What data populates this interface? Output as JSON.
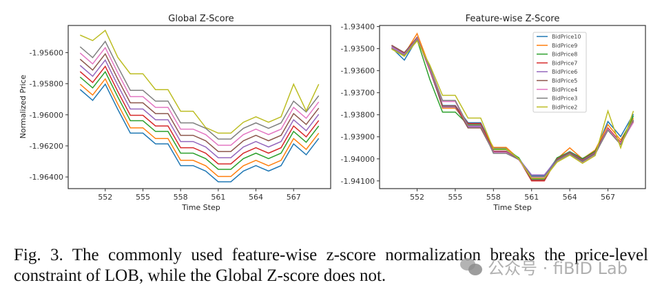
{
  "figure": {
    "caption": "Fig. 3.  The commonly used feature-wise z-score normalization breaks the price-level constraint of LOB, while the Global Z-score does not.",
    "watermark": "公众号 · fiBID Lab"
  },
  "colors": [
    "#1f77b4",
    "#ff7f0e",
    "#2ca02c",
    "#d62728",
    "#9467bd",
    "#8c564b",
    "#e377c2",
    "#7f7f7f",
    "#bcbd22"
  ],
  "chart_data": [
    {
      "type": "line",
      "title": "Global Z-Score",
      "xlabel": "Time Step",
      "ylabel": "Normalized Price",
      "x": [
        550,
        551,
        552,
        553,
        554,
        555,
        556,
        557,
        558,
        559,
        560,
        561,
        562,
        563,
        564,
        565,
        566,
        567,
        568,
        569
      ],
      "xticks": [
        "552",
        "555",
        "558",
        "561",
        "564",
        "567"
      ],
      "yticks": [
        "-1.95600",
        "-1.95800",
        "-1.96000",
        "-1.96200",
        "-1.96400"
      ],
      "ylim": [
        -1.96475,
        -1.95425
      ],
      "xlim": [
        549.05,
        569.95
      ],
      "grid": false,
      "series": [
        {
          "values": [
            -1.95837,
            -1.95907,
            -1.95803,
            -1.95965,
            -1.96118,
            -1.96118,
            -1.96187,
            -1.96187,
            -1.96327,
            -1.96327,
            -1.96362,
            -1.96431,
            -1.96431,
            -1.96362,
            -1.96327,
            -1.96362,
            -1.96327,
            -1.96187,
            -1.96257,
            -1.96152
          ]
        },
        {
          "values": [
            -1.95803,
            -1.95873,
            -1.95769,
            -1.95931,
            -1.96084,
            -1.96084,
            -1.96153,
            -1.96153,
            -1.96293,
            -1.96293,
            -1.96328,
            -1.96397,
            -1.96397,
            -1.96328,
            -1.96293,
            -1.96328,
            -1.96293,
            -1.96153,
            -1.96223,
            -1.96118
          ]
        },
        {
          "values": [
            -1.95757,
            -1.95827,
            -1.95723,
            -1.95885,
            -1.96038,
            -1.96038,
            -1.96107,
            -1.96107,
            -1.96247,
            -1.96247,
            -1.96282,
            -1.96351,
            -1.96351,
            -1.96282,
            -1.96247,
            -1.96282,
            -1.96247,
            -1.96107,
            -1.96177,
            -1.96072
          ]
        },
        {
          "values": [
            -1.95722,
            -1.95792,
            -1.95688,
            -1.9585,
            -1.96003,
            -1.96003,
            -1.96072,
            -1.96072,
            -1.96212,
            -1.96212,
            -1.96247,
            -1.96316,
            -1.96316,
            -1.96247,
            -1.96212,
            -1.96247,
            -1.96212,
            -1.96072,
            -1.96142,
            -1.96037
          ]
        },
        {
          "values": [
            -1.95682,
            -1.95752,
            -1.95648,
            -1.9581,
            -1.95963,
            -1.95963,
            -1.96032,
            -1.96032,
            -1.96172,
            -1.96172,
            -1.96207,
            -1.96276,
            -1.96276,
            -1.96207,
            -1.96172,
            -1.96207,
            -1.96172,
            -1.96032,
            -1.96102,
            -1.95997
          ]
        },
        {
          "values": [
            -1.95642,
            -1.95712,
            -1.95608,
            -1.9577,
            -1.95923,
            -1.95923,
            -1.95992,
            -1.95992,
            -1.96132,
            -1.96132,
            -1.96167,
            -1.96236,
            -1.96236,
            -1.96167,
            -1.96132,
            -1.96167,
            -1.96132,
            -1.95992,
            -1.96062,
            -1.95957
          ]
        },
        {
          "values": [
            -1.95602,
            -1.95672,
            -1.95568,
            -1.9573,
            -1.95883,
            -1.95883,
            -1.95952,
            -1.95952,
            -1.96092,
            -1.96092,
            -1.96127,
            -1.96196,
            -1.96196,
            -1.96127,
            -1.96092,
            -1.96127,
            -1.96092,
            -1.95952,
            -1.96022,
            -1.95917
          ]
        },
        {
          "values": [
            -1.95562,
            -1.95632,
            -1.95528,
            -1.9569,
            -1.95843,
            -1.95843,
            -1.95912,
            -1.95912,
            -1.96052,
            -1.96052,
            -1.96087,
            -1.96156,
            -1.96156,
            -1.96087,
            -1.96052,
            -1.96087,
            -1.96052,
            -1.95912,
            -1.95982,
            -1.95877
          ]
        },
        {
          "values": [
            -1.95487,
            -1.95522,
            -1.95457,
            -1.9563,
            -1.95736,
            -1.95736,
            -1.95838,
            -1.95838,
            -1.95977,
            -1.95977,
            -1.96082,
            -1.96118,
            -1.96118,
            -1.96048,
            -1.96013,
            -1.96048,
            -1.96013,
            -1.95803,
            -1.95975,
            -1.95803
          ]
        }
      ]
    },
    {
      "type": "line",
      "title": "Feature-wise Z-Score",
      "xlabel": "Time Step",
      "ylabel": "",
      "x": [
        550,
        551,
        552,
        553,
        554,
        555,
        556,
        557,
        558,
        559,
        560,
        561,
        562,
        563,
        564,
        565,
        566,
        567,
        568,
        569
      ],
      "xticks": [
        "552",
        "555",
        "558",
        "561",
        "564",
        "567"
      ],
      "yticks": [
        "-1.93400",
        "-1.93500",
        "-1.93600",
        "-1.93700",
        "-1.93800",
        "-1.93900",
        "-1.94000",
        "-1.94100"
      ],
      "ylim": [
        -1.94135,
        -1.93395
      ],
      "xlim": [
        549.05,
        569.95
      ],
      "grid": false,
      "legend": "top-right",
      "series": [
        {
          "name": "BidPrice10",
          "values": [
            -1.93496,
            -1.93552,
            -1.93456,
            -1.93581,
            -1.93758,
            -1.93758,
            -1.93836,
            -1.93836,
            -1.93951,
            -1.93951,
            -1.93998,
            -1.94076,
            -1.94076,
            -1.93998,
            -1.93967,
            -1.93998,
            -1.93967,
            -1.93831,
            -1.93899,
            -1.93797
          ]
        },
        {
          "name": "BidPrice9",
          "values": [
            -1.935,
            -1.93525,
            -1.93432,
            -1.93585,
            -1.9377,
            -1.9377,
            -1.93845,
            -1.93845,
            -1.93948,
            -1.93948,
            -1.94,
            -1.94085,
            -1.94085,
            -1.94,
            -1.9395,
            -1.94,
            -1.9396,
            -1.93845,
            -1.93915,
            -1.93815
          ]
        },
        {
          "name": "BidPrice8",
          "values": [
            -1.93495,
            -1.9353,
            -1.9346,
            -1.9364,
            -1.93788,
            -1.93788,
            -1.93845,
            -1.93845,
            -1.93958,
            -1.93958,
            -1.93995,
            -1.9409,
            -1.9409,
            -1.93995,
            -1.93968,
            -1.94,
            -1.93965,
            -1.9386,
            -1.93925,
            -1.93805
          ]
        },
        {
          "name": "BidPrice7",
          "values": [
            -1.93485,
            -1.9352,
            -1.9345,
            -1.936,
            -1.9376,
            -1.9376,
            -1.9384,
            -1.9384,
            -1.93965,
            -1.93965,
            -1.94,
            -1.941,
            -1.941,
            -1.94,
            -1.9397,
            -1.94005,
            -1.9397,
            -1.9386,
            -1.93925,
            -1.9383
          ]
        },
        {
          "name": "BidPrice6",
          "values": [
            -1.9349,
            -1.93525,
            -1.93448,
            -1.93595,
            -1.93765,
            -1.93765,
            -1.93855,
            -1.93855,
            -1.93968,
            -1.93968,
            -1.94,
            -1.94073,
            -1.94073,
            -1.94002,
            -1.9397,
            -1.94008,
            -1.93972,
            -1.93865,
            -1.9393,
            -1.93825
          ]
        },
        {
          "name": "BidPrice5",
          "values": [
            -1.93485,
            -1.93518,
            -1.9345,
            -1.9359,
            -1.9376,
            -1.9376,
            -1.9386,
            -1.9386,
            -1.9397,
            -1.9397,
            -1.94002,
            -1.94095,
            -1.94095,
            -1.94003,
            -1.93972,
            -1.9401,
            -1.93975,
            -1.9387,
            -1.93935,
            -1.9383
          ]
        },
        {
          "name": "BidPrice4",
          "values": [
            -1.93495,
            -1.93528,
            -1.93455,
            -1.9359,
            -1.9374,
            -1.9374,
            -1.9385,
            -1.9385,
            -1.93972,
            -1.93972,
            -1.94005,
            -1.94085,
            -1.94085,
            -1.9401,
            -1.93978,
            -1.94015,
            -1.9398,
            -1.93865,
            -1.9393,
            -1.93835
          ]
        },
        {
          "name": "BidPrice3",
          "values": [
            -1.93498,
            -1.9353,
            -1.93458,
            -1.93585,
            -1.93735,
            -1.93735,
            -1.93848,
            -1.93848,
            -1.93975,
            -1.93975,
            -1.94003,
            -1.9408,
            -1.9408,
            -1.94008,
            -1.93978,
            -1.94013,
            -1.93978,
            -1.9387,
            -1.93935,
            -1.93822
          ]
        },
        {
          "name": "BidPrice2",
          "values": [
            -1.93502,
            -1.93535,
            -1.93465,
            -1.93575,
            -1.93712,
            -1.93712,
            -1.93815,
            -1.93815,
            -1.93955,
            -1.93955,
            -1.94,
            -1.94088,
            -1.94088,
            -1.94015,
            -1.93983,
            -1.9402,
            -1.93985,
            -1.93783,
            -1.9395,
            -1.93783
          ]
        }
      ]
    }
  ]
}
